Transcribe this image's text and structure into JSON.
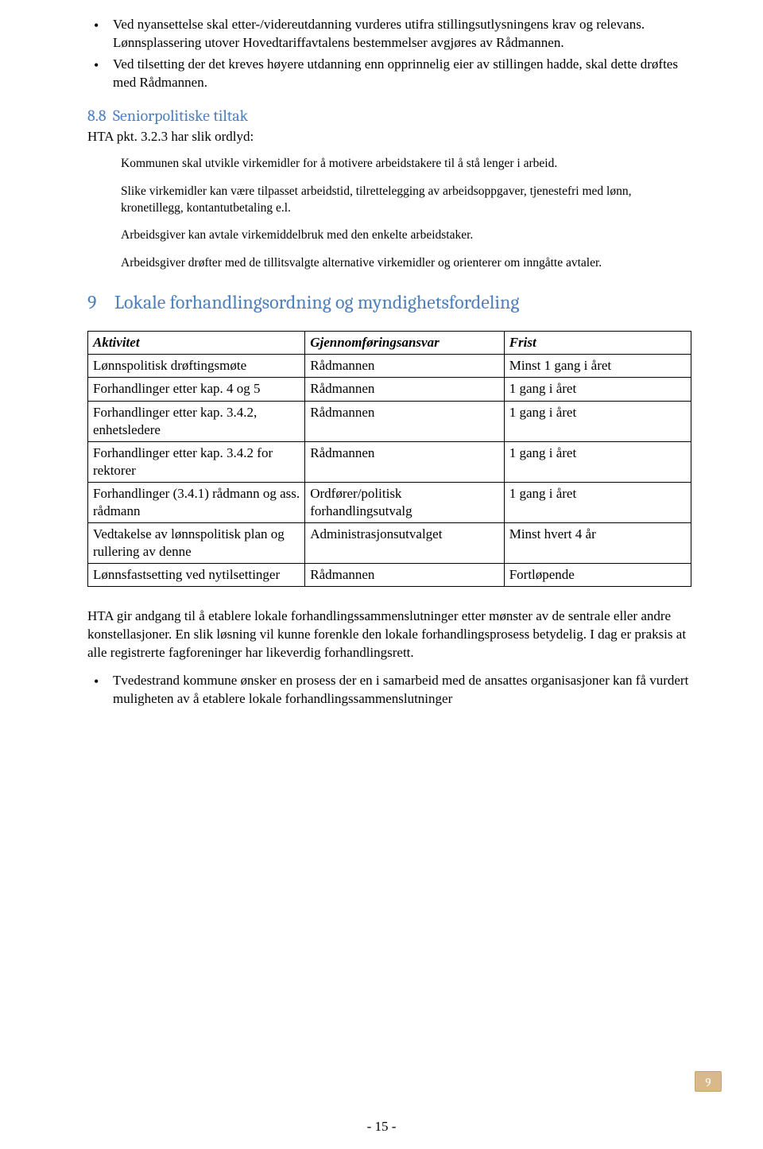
{
  "bullets_top": [
    "Ved nyansettelse skal etter-/videreutdanning vurderes utifra stillingsutlysningens krav og relevans. Lønnsplassering utover Hovedtariffavtalens bestemmelser avgjøres av Rådmannen.",
    "Ved tilsetting der det kreves høyere utdanning enn opprinnelig eier av stillingen hadde, skal dette drøftes med Rådmannen."
  ],
  "section_8_8": {
    "num": "8.8",
    "title": "Seniorpolitiske tiltak",
    "intro": "HTA pkt. 3.2.3 har slik ordlyd:",
    "quotes": [
      "Kommunen skal utvikle virkemidler for å motivere arbeidstakere til å stå lenger i arbeid.",
      "Slike virkemidler kan være tilpasset arbeidstid, tilrettelegging av arbeidsoppgaver, tjenestefri med lønn, kronetillegg, kontantutbetaling e.l.",
      "Arbeidsgiver kan avtale virkemiddelbruk med den enkelte arbeidstaker.",
      "Arbeidsgiver drøfter med de tillitsvalgte alternative virkemidler og orienterer om inngåtte avtaler."
    ]
  },
  "section_9": {
    "num": "9",
    "title": "Lokale forhandlingsordning og myndighetsfordeling"
  },
  "table": {
    "headers": [
      "Aktivitet",
      "Gjennomføringsansvar",
      "Frist"
    ],
    "rows": [
      [
        "Lønnspolitisk drøftingsmøte",
        "Rådmannen",
        "Minst 1 gang i året"
      ],
      [
        "Forhandlinger etter kap. 4 og 5",
        "Rådmannen",
        "1 gang i året"
      ],
      [
        "Forhandlinger etter kap. 3.4.2, enhetsledere",
        "Rådmannen",
        "1 gang i året"
      ],
      [
        "Forhandlinger etter kap. 3.4.2 for rektorer",
        "Rådmannen",
        "1 gang i året"
      ],
      [
        "Forhandlinger (3.4.1) rådmann og ass. rådmann",
        "Ordfører/politisk forhandlingsutvalg",
        "1 gang i året"
      ],
      [
        "Vedtakelse av lønnspolitisk plan og rullering av denne",
        "Administrasjonsutvalget",
        "Minst hvert 4 år"
      ],
      [
        "Lønnsfastsetting ved nytilsettinger",
        "Rådmannen",
        "Fortløpende"
      ]
    ],
    "col_widths": [
      "36%",
      "33%",
      "31%"
    ]
  },
  "para_after_table": "HTA gir andgang til å etablere lokale forhandlingssammenslutninger etter mønster av de sentrale eller andre konstellasjoner.  En slik løsning vil kunne forenkle den lokale forhandlingsprosess betydelig.  I dag er praksis at alle registrerte fagforeninger har likeverdig forhandlingsrett.",
  "bullets_bottom": [
    "Tvedestrand kommune ønsker en prosess der en i samarbeid med de ansattes organisasjoner kan få vurdert muligheten av å etablere lokale forhandlingssammenslutninger"
  ],
  "page_badge": "9",
  "page_number": "- 15 -",
  "colors": {
    "heading": "#4f81bd",
    "badge_bg": "#d9b98a",
    "badge_border": "#c8a36b",
    "text": "#000000",
    "background": "#ffffff"
  }
}
